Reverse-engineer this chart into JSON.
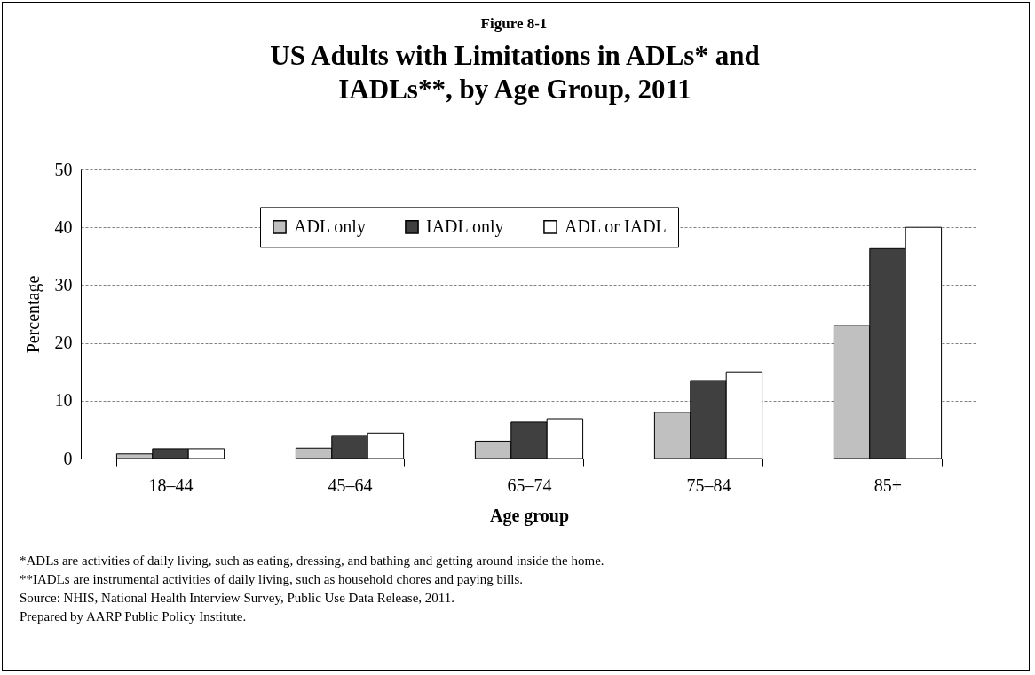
{
  "chart_data": {
    "type": "bar",
    "subtitle": "Figure 8-1",
    "title": "US Adults with Limitations in ADLs* and IADLs**, by Age Group, 2011",
    "xlabel": "Age group",
    "ylabel": "Percentage",
    "categories": [
      "18–44",
      "45–64",
      "65–74",
      "75–84",
      "85+"
    ],
    "series": [
      {
        "name": "ADL only",
        "color": "#c0c0c0",
        "values": [
          0.8,
          1.8,
          3.0,
          8.0,
          23.0
        ]
      },
      {
        "name": "IADL only",
        "color": "#404040",
        "values": [
          1.7,
          4.0,
          6.3,
          13.5,
          36.3
        ]
      },
      {
        "name": "ADL or IADL",
        "color": "#ffffff",
        "values": [
          1.7,
          4.4,
          6.9,
          15.0,
          40.0
        ]
      }
    ],
    "ylim": [
      0,
      50
    ],
    "yticks": [
      0,
      10,
      20,
      30,
      40,
      50
    ],
    "grid": "y",
    "legend": "top",
    "annotations": [
      "*ADLs are activities of daily living, such as eating, dressing, and bathing and getting around inside the home.",
      "**IADLs are instrumental activities of daily living, such as household chores and paying bills.",
      "Source: NHIS, National Health Interview Survey, Public Use Data Release, 2011.",
      "Prepared by AARP Public Policy Institute."
    ]
  }
}
